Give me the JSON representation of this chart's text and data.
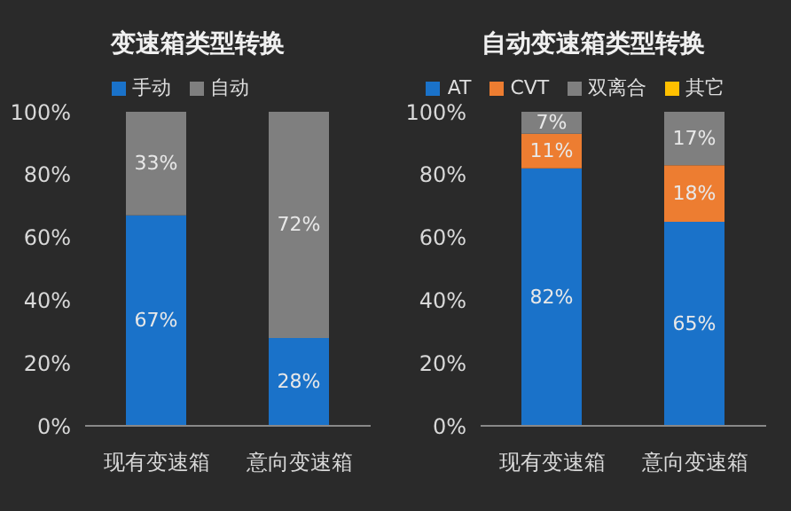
{
  "chart_data": [
    {
      "type": "bar",
      "title": "变速箱类型转换",
      "categories": [
        "现有变速箱",
        "意向变速箱"
      ],
      "stacked": true,
      "legend": "top",
      "grid": false,
      "ylim": [
        0,
        100
      ],
      "yticks": [
        {
          "value": 0,
          "label": "0%"
        },
        {
          "value": 20,
          "label": "20%"
        },
        {
          "value": 40,
          "label": "40%"
        },
        {
          "value": 60,
          "label": "60%"
        },
        {
          "value": 80,
          "label": "80%"
        },
        {
          "value": 100,
          "label": "100%"
        }
      ],
      "series": [
        {
          "name": "手动",
          "color": "#1a72c9",
          "values": [
            67,
            28
          ],
          "value_labels": [
            "67%",
            "28%"
          ]
        },
        {
          "name": "自动",
          "color": "#7f7f7f",
          "values": [
            33,
            72
          ],
          "value_labels": [
            "33%",
            "72%"
          ]
        }
      ]
    },
    {
      "type": "bar",
      "title": "自动变速箱类型转换",
      "categories": [
        "现有变速箱",
        "意向变速箱"
      ],
      "stacked": true,
      "legend": "top",
      "grid": false,
      "ylim": [
        0,
        100
      ],
      "yticks": [
        {
          "value": 0,
          "label": "0%"
        },
        {
          "value": 20,
          "label": "20%"
        },
        {
          "value": 40,
          "label": "40%"
        },
        {
          "value": 60,
          "label": "60%"
        },
        {
          "value": 80,
          "label": "80%"
        },
        {
          "value": 100,
          "label": "100%"
        }
      ],
      "series": [
        {
          "name": "AT",
          "color": "#1a72c9",
          "values": [
            82,
            65
          ],
          "value_labels": [
            "82%",
            "65%"
          ]
        },
        {
          "name": "CVT",
          "color": "#ed7d31",
          "values": [
            11,
            18
          ],
          "value_labels": [
            "11%",
            "18%"
          ]
        },
        {
          "name": "双离合",
          "color": "#7f7f7f",
          "values": [
            7,
            17
          ],
          "value_labels": [
            "7%",
            "17%"
          ]
        },
        {
          "name": "其它",
          "color": "#ffc000",
          "values": [
            0,
            0
          ],
          "value_labels": [
            null,
            null
          ]
        }
      ]
    }
  ]
}
